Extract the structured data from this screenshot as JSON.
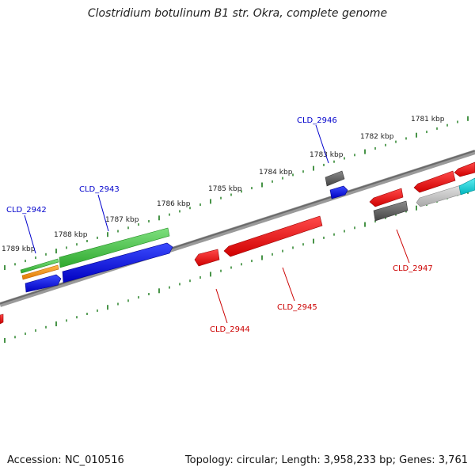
{
  "title": "Clostridium botulinum B1 str. Okra, complete genome",
  "footer": {
    "accession": "Accession: NC_010516",
    "summary": "Topology: circular; Length: 3,958,233 bp; Genes: 3,761"
  },
  "kbp_labels": [
    "1781 kbp",
    "1782 kbp",
    "1783 kbp",
    "1784 kbp",
    "1785 kbp",
    "1786 kbp",
    "1787 kbp",
    "1788 kbp",
    "1789 kbp"
  ],
  "gene_labels": [
    {
      "text": "CLD_2942",
      "strand": "forward"
    },
    {
      "text": "CLD_2943",
      "strand": "forward"
    },
    {
      "text": "CLD_2944",
      "strand": "reverse"
    },
    {
      "text": "CLD_2945",
      "strand": "reverse"
    },
    {
      "text": "CLD_2946",
      "strand": "forward"
    },
    {
      "text": "CLD_2947",
      "strand": "reverse"
    }
  ],
  "colors": {
    "forward_label": "#0000cc",
    "reverse_label": "#cc0000",
    "tick": "#1a7a1a",
    "backbone": "#777777"
  }
}
